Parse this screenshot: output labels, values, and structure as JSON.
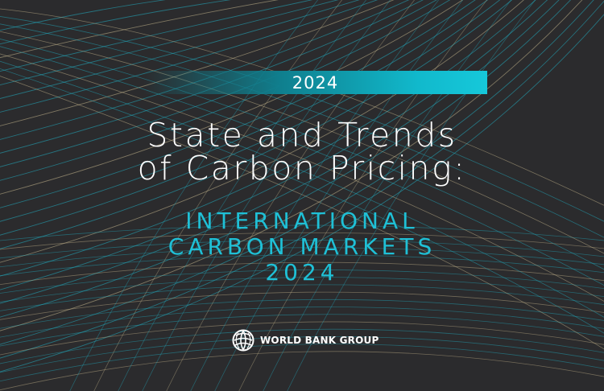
{
  "cover": {
    "year_badge": "2024",
    "title_line1": "State and Trends",
    "title_line2": "of Carbon Pricing:",
    "subtitle_line1": "INTERNATIONAL",
    "subtitle_line2": "CARBON MARKETS",
    "subtitle_line3": "2024",
    "publisher": "WORLD BANK GROUP",
    "logo_icon": "globe-icon",
    "colors": {
      "background": "#2b2b2d",
      "accent": "#1fc0d6",
      "line_teal": "#22b0c4",
      "line_sand": "#c9b98f",
      "text": "#ffffff"
    }
  }
}
